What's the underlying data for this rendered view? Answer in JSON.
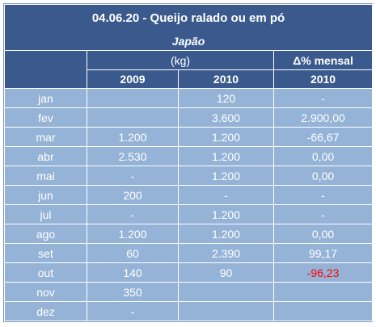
{
  "header": {
    "title": "04.06.20 - Queijo ralado ou em pó",
    "subtitle": "Japão"
  },
  "table": {
    "unit": "(kg)",
    "change_label": "Δ% mensal",
    "columns": [
      "2009",
      "2010",
      "2010"
    ],
    "rows": [
      [
        "jan",
        null,
        "120",
        "-"
      ],
      [
        "fev",
        null,
        "3.600",
        "2.900,00"
      ],
      [
        "mar",
        "1.200",
        "1.200",
        "-66,67"
      ],
      [
        "abr",
        "2.530",
        "1.200",
        "0,00"
      ],
      [
        "mai",
        "-",
        "1.200",
        "0,00"
      ],
      [
        "jun",
        "200",
        "-",
        "-"
      ],
      [
        "jul",
        "-",
        "1.200",
        "-"
      ],
      [
        "ago",
        "1.200",
        "1.200",
        "0,00"
      ],
      [
        "set",
        "60",
        "2.390",
        "99,17"
      ],
      [
        "out",
        "140",
        "90",
        "-96,23"
      ],
      [
        "nov",
        "350",
        null,
        null
      ],
      [
        "dez",
        "-",
        null,
        null
      ]
    ]
  }
}
